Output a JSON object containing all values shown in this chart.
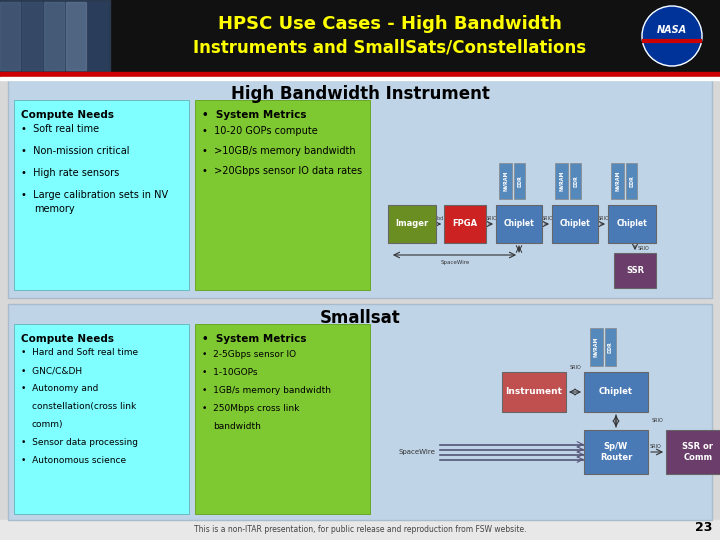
{
  "title_line1": "HPSC Use Cases - High Bandwidth",
  "title_line2": "Instruments and SmallSats/Constellations",
  "title_color": "#FFFF00",
  "header_bg": "#111111",
  "body_bg": "#e8e8e8",
  "panel_bg": "#c0d4e8",
  "cyan_box_bg": "#7fffff",
  "green_box_bg": "#7ec832",
  "section1_title": "High Bandwidth Instrument",
  "section2_title": "Smallsat",
  "section1_compute_title": "Compute Needs",
  "section1_compute_bullets": [
    "Soft real time",
    "Non-mission critical",
    "High rate sensors",
    "Large calibration sets in NV",
    "memory"
  ],
  "section1_metrics_title": "System Metrics",
  "section1_metrics_bullets": [
    "10-20 GOPs compute",
    ">10GB/s memory bandwidth",
    ">20Gbps sensor IO data rates"
  ],
  "section2_compute_title": "Compute Needs",
  "section2_compute_bullets": [
    "Hard and Soft real time",
    "GNC/C&DH",
    "Autonomy and",
    "constellation(cross link",
    "comm)",
    "Sensor data processing",
    "Autonomous science"
  ],
  "section2_metrics_title": "System Metrics",
  "section2_metrics_bullets": [
    "2-5Gbps sensor IO",
    "1-10GOPs",
    "1GB/s memory bandwidth",
    "250Mbps cross link",
    "bandwidth"
  ],
  "footer_text": "This is a non-ITAR presentation, for public release and reproduction from FSW website.",
  "page_num": "23"
}
